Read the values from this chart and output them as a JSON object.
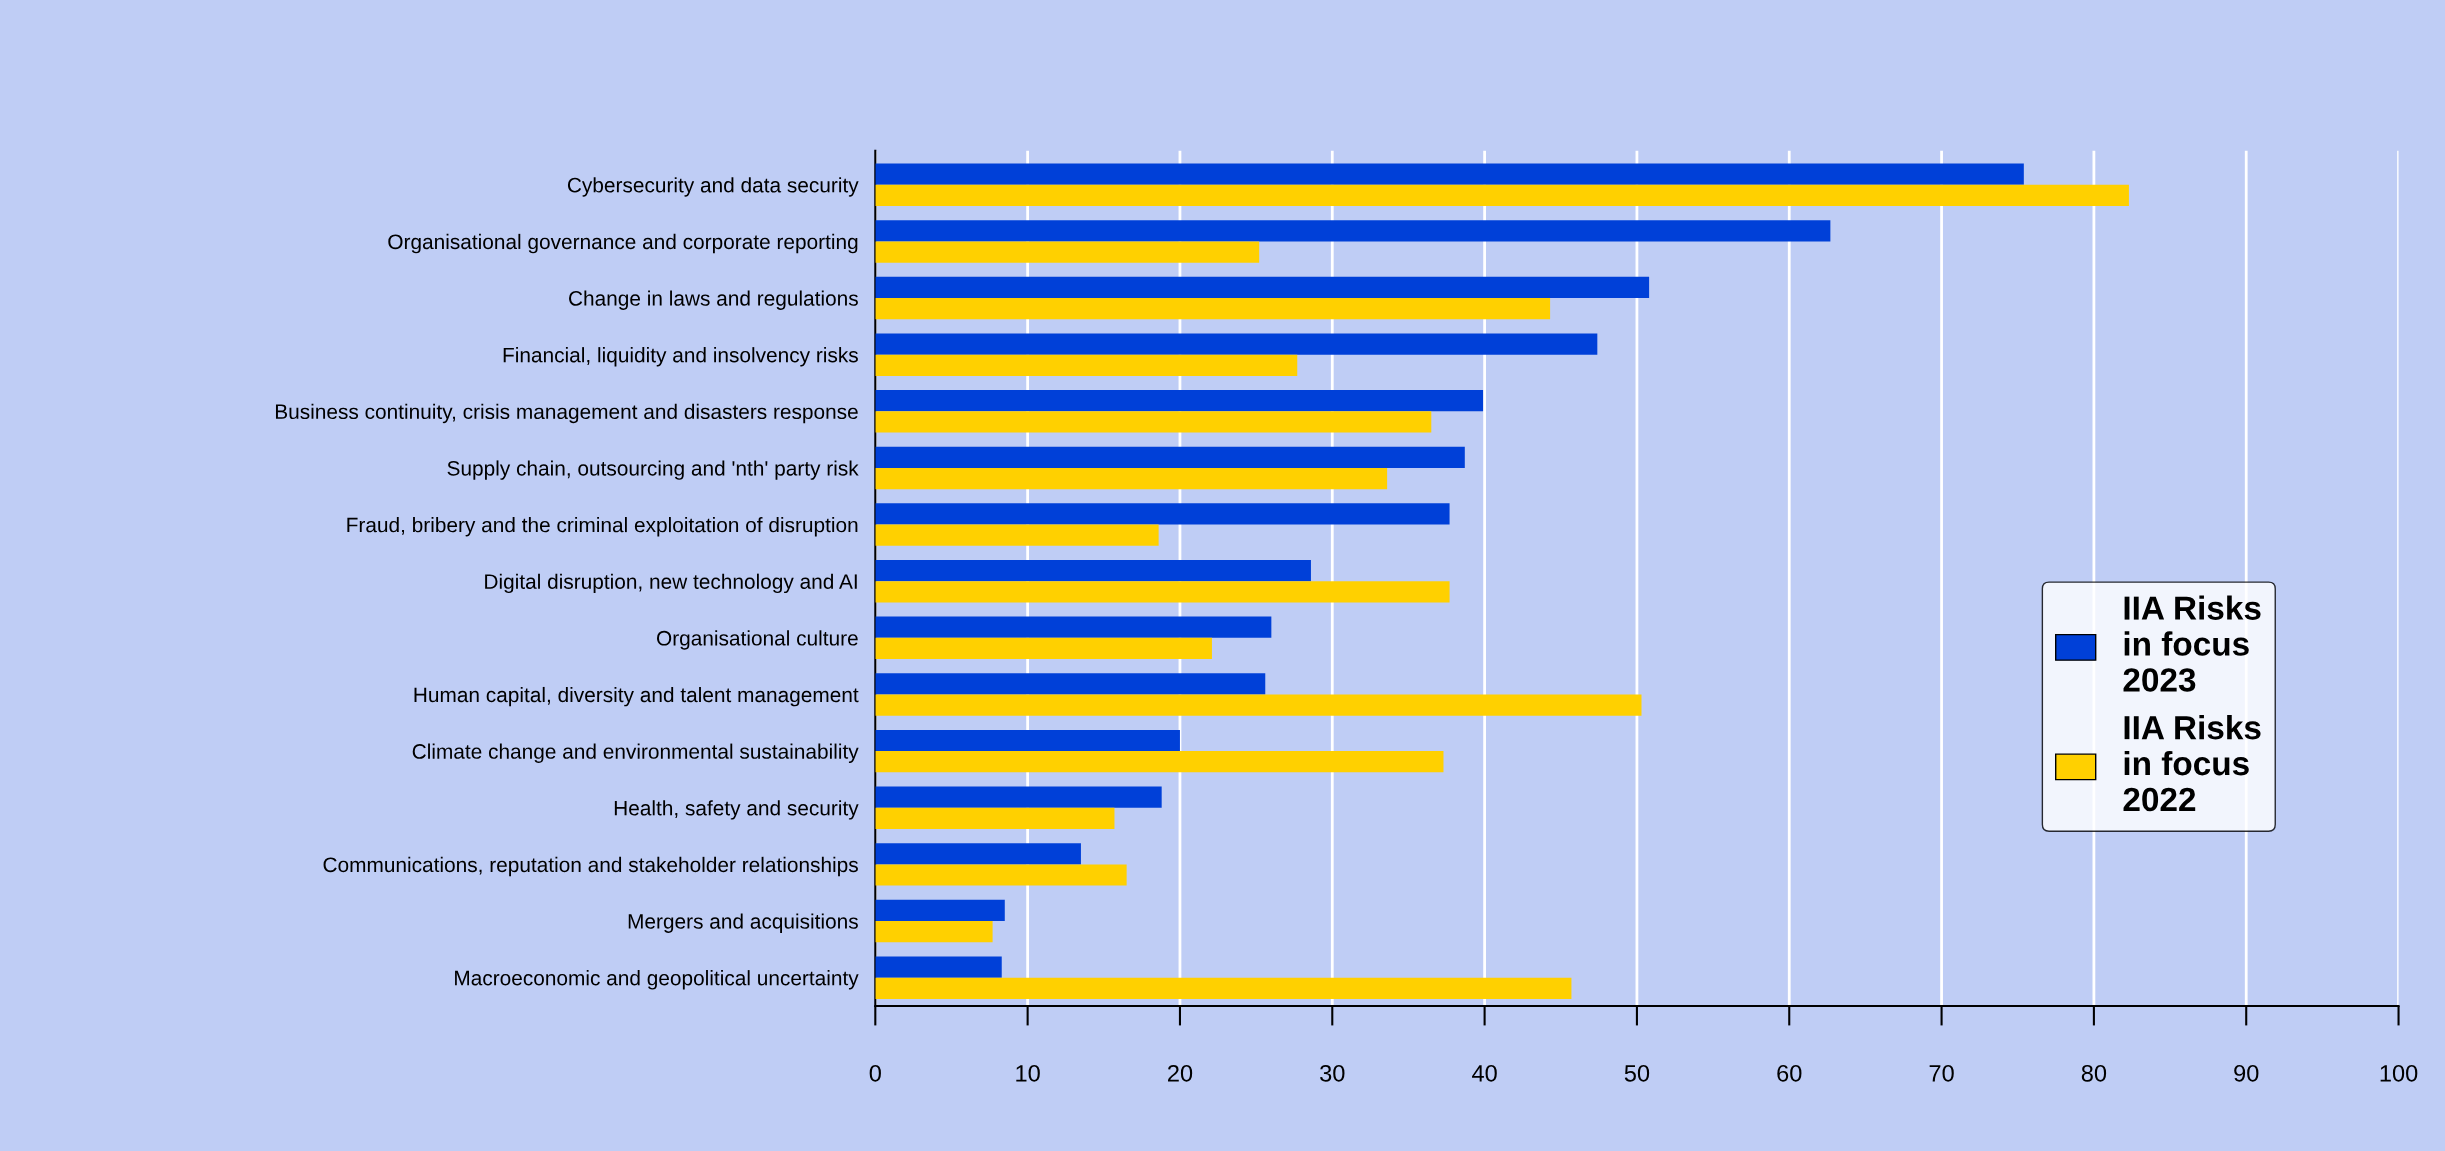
{
  "chart_data": {
    "type": "bar",
    "orientation": "horizontal",
    "categories": [
      "Cybersecurity and data security",
      "Organisational governance and corporate reporting",
      "Change in laws and regulations",
      "Financial, liquidity and insolvency risks",
      "Business continuity, crisis management and disasters response",
      "Supply chain, outsourcing and 'nth' party risk",
      "Fraud, bribery and the criminal exploitation of disruption",
      "Digital disruption, new technology and AI",
      "Organisational culture",
      "Human capital, diversity and talent management",
      "Climate change and environmental sustainability",
      "Health, safety and security",
      "Communications, reputation and stakeholder relationships",
      "Mergers and acquisitions",
      "Macroeconomic and geopolitical uncertainty"
    ],
    "series": [
      {
        "name": "IIA Risks\nin focus\n2023",
        "color": "#0040d8",
        "values": [
          75.4,
          62.7,
          50.8,
          47.4,
          39.9,
          38.7,
          37.7,
          28.6,
          26.0,
          25.6,
          20.0,
          18.8,
          13.5,
          8.5,
          8.3
        ]
      },
      {
        "name": "IIA Risks\nin focus\n2022",
        "color": "#ffd000",
        "values": [
          82.3,
          25.2,
          44.3,
          27.7,
          36.5,
          33.6,
          18.6,
          37.7,
          22.1,
          50.3,
          37.3,
          15.7,
          16.5,
          7.7,
          45.7
        ]
      }
    ],
    "xlim": [
      0,
      100
    ],
    "xticks": [
      0,
      10,
      20,
      30,
      40,
      50,
      60,
      70,
      80,
      90,
      100
    ],
    "grid": "x",
    "legend": "right"
  }
}
